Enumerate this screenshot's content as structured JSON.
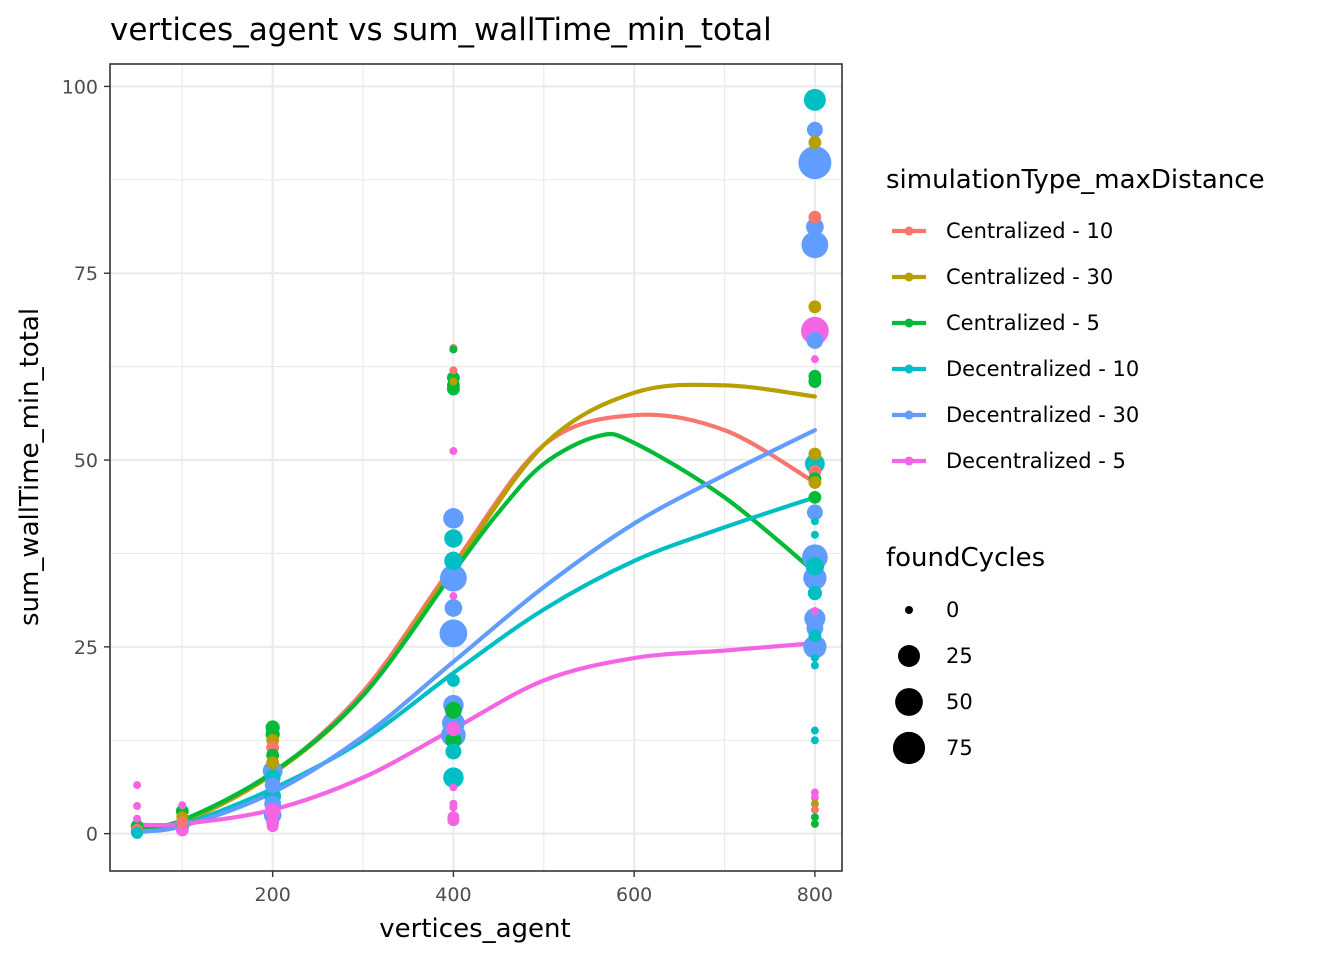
{
  "chart_data": {
    "type": "scatter",
    "title": "vertices_agent  vs  sum_wallTime_min_total",
    "xlabel": "vertices_agent",
    "ylabel": "sum_wallTime_min_total",
    "xlim": [
      20,
      830
    ],
    "ylim": [
      -5,
      103
    ],
    "x_ticks": [
      200,
      400,
      600,
      800
    ],
    "x_tick_labels": [
      "200",
      "400",
      "600",
      "800"
    ],
    "y_ticks": [
      0,
      25,
      50,
      75,
      100
    ],
    "y_tick_labels": [
      "0",
      "25",
      "50",
      "75",
      "100"
    ],
    "grid": true,
    "legend_placement": "right",
    "color_legend": {
      "title": "simulationType_maxDistance",
      "entries": [
        {
          "label": "Centralized - 10",
          "color": "#F8766D"
        },
        {
          "label": "Centralized - 30",
          "color": "#B79F00"
        },
        {
          "label": "Centralized - 5",
          "color": "#00BA38"
        },
        {
          "label": "Decentralized - 10",
          "color": "#00BFC4"
        },
        {
          "label": "Decentralized - 30",
          "color": "#619CFF"
        },
        {
          "label": "Decentralized - 5",
          "color": "#F564E3"
        }
      ]
    },
    "size_legend": {
      "title": "foundCycles",
      "entries": [
        {
          "label": "0",
          "value": 0
        },
        {
          "label": "25",
          "value": 25
        },
        {
          "label": "50",
          "value": 50
        },
        {
          "label": "75",
          "value": 75
        }
      ]
    },
    "smooth_lines": [
      {
        "series": "Centralized - 10",
        "color": "#F8766D",
        "x": [
          50,
          100,
          200,
          300,
          400,
          500,
          600,
          700,
          800
        ],
        "y": [
          0.5,
          1.5,
          8,
          19,
          36,
          52,
          56,
          54,
          47
        ]
      },
      {
        "series": "Centralized - 30",
        "color": "#B79F00",
        "x": [
          50,
          100,
          200,
          300,
          400,
          500,
          600,
          700,
          800
        ],
        "y": [
          0.5,
          1.5,
          8,
          18.5,
          35.5,
          52,
          59,
          60,
          58.5
        ]
      },
      {
        "series": "Centralized - 5",
        "color": "#00BA38",
        "x": [
          50,
          100,
          200,
          300,
          400,
          450,
          500,
          560,
          600,
          700,
          800
        ],
        "y": [
          0.8,
          1.8,
          8.2,
          18.5,
          35,
          43,
          49.5,
          53.2,
          52.3,
          45,
          35
        ]
      },
      {
        "series": "Decentralized - 10",
        "color": "#00BFC4",
        "x": [
          50,
          100,
          200,
          300,
          400,
          500,
          600,
          700,
          800
        ],
        "y": [
          0.2,
          1.2,
          6,
          12.5,
          21.5,
          30,
          36.5,
          41,
          45
        ]
      },
      {
        "series": "Decentralized - 30",
        "color": "#619CFF",
        "x": [
          50,
          100,
          200,
          300,
          400,
          500,
          600,
          700,
          800
        ],
        "y": [
          0.3,
          1.0,
          5.5,
          13,
          23,
          33,
          41.5,
          48,
          54
        ]
      },
      {
        "series": "Decentralized - 5",
        "color": "#F564E3",
        "x": [
          50,
          100,
          200,
          300,
          400,
          500,
          600,
          700,
          800
        ],
        "y": [
          1.2,
          1.3,
          3.2,
          7.5,
          14,
          20.5,
          23.5,
          24.5,
          25.5
        ]
      }
    ],
    "points": [
      {
        "x": 50,
        "y": 6.5,
        "series": "Decentralized - 5",
        "foundCycles": 0
      },
      {
        "x": 50,
        "y": 3.7,
        "series": "Decentralized - 5",
        "foundCycles": 0
      },
      {
        "x": 50,
        "y": 2.0,
        "series": "Decentralized - 5",
        "foundCycles": 0
      },
      {
        "x": 50,
        "y": 1.0,
        "series": "Centralized - 5",
        "foundCycles": 3
      },
      {
        "x": 50,
        "y": 0.5,
        "series": "Centralized - 10",
        "foundCycles": 2
      },
      {
        "x": 50,
        "y": 0.3,
        "series": "Decentralized - 30",
        "foundCycles": 3
      },
      {
        "x": 50,
        "y": 0.1,
        "series": "Decentralized - 10",
        "foundCycles": 2
      },
      {
        "x": 100,
        "y": 3.8,
        "series": "Decentralized - 5",
        "foundCycles": 0
      },
      {
        "x": 100,
        "y": 3.0,
        "series": "Centralized - 5",
        "foundCycles": 3
      },
      {
        "x": 100,
        "y": 2.2,
        "series": "Centralized - 30",
        "foundCycles": 2
      },
      {
        "x": 100,
        "y": 1.5,
        "series": "Centralized - 10",
        "foundCycles": 2
      },
      {
        "x": 100,
        "y": 1.2,
        "series": "Decentralized - 30",
        "foundCycles": 6
      },
      {
        "x": 100,
        "y": 0.8,
        "series": "Decentralized - 10",
        "foundCycles": 3
      },
      {
        "x": 100,
        "y": 0.5,
        "series": "Decentralized - 5",
        "foundCycles": 3
      },
      {
        "x": 200,
        "y": 14.2,
        "series": "Centralized - 5",
        "foundCycles": 5
      },
      {
        "x": 200,
        "y": 13.3,
        "series": "Centralized - 5",
        "foundCycles": 5
      },
      {
        "x": 200,
        "y": 12.5,
        "series": "Centralized - 30",
        "foundCycles": 3
      },
      {
        "x": 200,
        "y": 11.5,
        "series": "Centralized - 10",
        "foundCycles": 3
      },
      {
        "x": 200,
        "y": 10.5,
        "series": "Centralized - 5",
        "foundCycles": 3
      },
      {
        "x": 200,
        "y": 9.5,
        "series": "Centralized - 30",
        "foundCycles": 3
      },
      {
        "x": 200,
        "y": 8.4,
        "series": "Decentralized - 30",
        "foundCycles": 18
      },
      {
        "x": 200,
        "y": 7.5,
        "series": "Decentralized - 10",
        "foundCycles": 8
      },
      {
        "x": 200,
        "y": 6.5,
        "series": "Decentralized - 30",
        "foundCycles": 8
      },
      {
        "x": 200,
        "y": 5.0,
        "series": "Decentralized - 10",
        "foundCycles": 10
      },
      {
        "x": 200,
        "y": 4.0,
        "series": "Decentralized - 30",
        "foundCycles": 10
      },
      {
        "x": 200,
        "y": 3.0,
        "series": "Decentralized - 5",
        "foundCycles": 8
      },
      {
        "x": 200,
        "y": 2.5,
        "series": "Decentralized - 30",
        "foundCycles": 12
      },
      {
        "x": 200,
        "y": 1.5,
        "series": "Decentralized - 5",
        "foundCycles": 3
      },
      {
        "x": 200,
        "y": 1.0,
        "series": "Decentralized - 5",
        "foundCycles": 2
      },
      {
        "x": 400,
        "y": 65.0,
        "series": "Centralized - 10",
        "foundCycles": 0
      },
      {
        "x": 400,
        "y": 64.8,
        "series": "Centralized - 5",
        "foundCycles": 0
      },
      {
        "x": 400,
        "y": 62.0,
        "series": "Centralized - 10",
        "foundCycles": 0
      },
      {
        "x": 400,
        "y": 61.0,
        "series": "Centralized - 5",
        "foundCycles": 3
      },
      {
        "x": 400,
        "y": 60.5,
        "series": "Centralized - 30",
        "foundCycles": 0
      },
      {
        "x": 400,
        "y": 60.0,
        "series": "Centralized - 5",
        "foundCycles": 3
      },
      {
        "x": 400,
        "y": 59.5,
        "series": "Centralized - 5",
        "foundCycles": 3
      },
      {
        "x": 400,
        "y": 51.2,
        "series": "Decentralized - 5",
        "foundCycles": 0
      },
      {
        "x": 400,
        "y": 42.2,
        "series": "Decentralized - 30",
        "foundCycles": 20
      },
      {
        "x": 400,
        "y": 39.5,
        "series": "Decentralized - 10",
        "foundCycles": 14
      },
      {
        "x": 400,
        "y": 36.5,
        "series": "Decentralized - 10",
        "foundCycles": 14
      },
      {
        "x": 400,
        "y": 34.2,
        "series": "Decentralized - 30",
        "foundCycles": 45
      },
      {
        "x": 400,
        "y": 31.8,
        "series": "Decentralized - 5",
        "foundCycles": 0
      },
      {
        "x": 400,
        "y": 30.2,
        "series": "Decentralized - 30",
        "foundCycles": 12
      },
      {
        "x": 400,
        "y": 26.8,
        "series": "Decentralized - 30",
        "foundCycles": 50
      },
      {
        "x": 400,
        "y": 20.5,
        "series": "Decentralized - 10",
        "foundCycles": 3
      },
      {
        "x": 400,
        "y": 17.2,
        "series": "Decentralized - 30",
        "foundCycles": 20
      },
      {
        "x": 400,
        "y": 16.5,
        "series": "Centralized - 5",
        "foundCycles": 10
      },
      {
        "x": 400,
        "y": 14.8,
        "series": "Decentralized - 30",
        "foundCycles": 28
      },
      {
        "x": 400,
        "y": 14.0,
        "series": "Decentralized - 5",
        "foundCycles": 5
      },
      {
        "x": 400,
        "y": 13.2,
        "series": "Decentralized - 30",
        "foundCycles": 35
      },
      {
        "x": 400,
        "y": 12.5,
        "series": "Centralized - 5",
        "foundCycles": 8
      },
      {
        "x": 400,
        "y": 11.0,
        "series": "Decentralized - 10",
        "foundCycles": 8
      },
      {
        "x": 400,
        "y": 7.5,
        "series": "Decentralized - 10",
        "foundCycles": 20
      },
      {
        "x": 400,
        "y": 6.2,
        "series": "Decentralized - 5",
        "foundCycles": 0
      },
      {
        "x": 400,
        "y": 4.0,
        "series": "Decentralized - 5",
        "foundCycles": 0
      },
      {
        "x": 400,
        "y": 3.5,
        "series": "Decentralized - 5",
        "foundCycles": 0
      },
      {
        "x": 400,
        "y": 2.2,
        "series": "Decentralized - 5",
        "foundCycles": 2
      },
      {
        "x": 400,
        "y": 1.8,
        "series": "Decentralized - 5",
        "foundCycles": 2
      },
      {
        "x": 800,
        "y": 98.2,
        "series": "Decentralized - 10",
        "foundCycles": 25
      },
      {
        "x": 800,
        "y": 94.2,
        "series": "Decentralized - 30",
        "foundCycles": 8
      },
      {
        "x": 800,
        "y": 92.5,
        "series": "Centralized - 30",
        "foundCycles": 3
      },
      {
        "x": 800,
        "y": 89.8,
        "series": "Decentralized - 30",
        "foundCycles": 80
      },
      {
        "x": 800,
        "y": 82.5,
        "series": "Centralized - 10",
        "foundCycles": 3
      },
      {
        "x": 800,
        "y": 81.2,
        "series": "Decentralized - 30",
        "foundCycles": 12
      },
      {
        "x": 800,
        "y": 78.8,
        "series": "Decentralized - 30",
        "foundCycles": 45
      },
      {
        "x": 800,
        "y": 70.5,
        "series": "Centralized - 30",
        "foundCycles": 3
      },
      {
        "x": 800,
        "y": 67.3,
        "series": "Decentralized - 5",
        "foundCycles": 50
      },
      {
        "x": 800,
        "y": 66.0,
        "series": "Decentralized - 30",
        "foundCycles": 10
      },
      {
        "x": 800,
        "y": 63.5,
        "series": "Decentralized - 5",
        "foundCycles": 0
      },
      {
        "x": 800,
        "y": 61.2,
        "series": "Centralized - 5",
        "foundCycles": 3
      },
      {
        "x": 800,
        "y": 60.5,
        "series": "Centralized - 5",
        "foundCycles": 3
      },
      {
        "x": 800,
        "y": 50.8,
        "series": "Centralized - 30",
        "foundCycles": 3
      },
      {
        "x": 800,
        "y": 49.5,
        "series": "Decentralized - 10",
        "foundCycles": 18
      },
      {
        "x": 800,
        "y": 48.5,
        "series": "Centralized - 10",
        "foundCycles": 3
      },
      {
        "x": 800,
        "y": 47.5,
        "series": "Centralized - 5",
        "foundCycles": 3
      },
      {
        "x": 800,
        "y": 47.0,
        "series": "Centralized - 30",
        "foundCycles": 3
      },
      {
        "x": 800,
        "y": 45.0,
        "series": "Centralized - 5",
        "foundCycles": 3
      },
      {
        "x": 800,
        "y": 43.0,
        "series": "Decentralized - 30",
        "foundCycles": 8
      },
      {
        "x": 800,
        "y": 41.8,
        "series": "Decentralized - 10",
        "foundCycles": 0
      },
      {
        "x": 800,
        "y": 40.0,
        "series": "Decentralized - 10",
        "foundCycles": 0
      },
      {
        "x": 800,
        "y": 37.0,
        "series": "Decentralized - 30",
        "foundCycles": 40
      },
      {
        "x": 800,
        "y": 35.8,
        "series": "Decentralized - 10",
        "foundCycles": 14
      },
      {
        "x": 800,
        "y": 34.2,
        "series": "Decentralized - 30",
        "foundCycles": 30
      },
      {
        "x": 800,
        "y": 32.2,
        "series": "Decentralized - 10",
        "foundCycles": 5
      },
      {
        "x": 800,
        "y": 29.8,
        "series": "Decentralized - 5",
        "foundCycles": 0
      },
      {
        "x": 800,
        "y": 28.8,
        "series": "Decentralized - 30",
        "foundCycles": 22
      },
      {
        "x": 800,
        "y": 27.5,
        "series": "Decentralized - 30",
        "foundCycles": 10
      },
      {
        "x": 800,
        "y": 26.5,
        "series": "Decentralized - 10",
        "foundCycles": 3
      },
      {
        "x": 800,
        "y": 25.0,
        "series": "Decentralized - 30",
        "foundCycles": 30
      },
      {
        "x": 800,
        "y": 23.5,
        "series": "Decentralized - 10",
        "foundCycles": 0
      },
      {
        "x": 800,
        "y": 22.5,
        "series": "Decentralized - 10",
        "foundCycles": 0
      },
      {
        "x": 800,
        "y": 13.8,
        "series": "Decentralized - 10",
        "foundCycles": 0
      },
      {
        "x": 800,
        "y": 12.5,
        "series": "Decentralized - 10",
        "foundCycles": 0
      },
      {
        "x": 800,
        "y": 5.5,
        "series": "Decentralized - 5",
        "foundCycles": 0
      },
      {
        "x": 800,
        "y": 4.8,
        "series": "Decentralized - 5",
        "foundCycles": 0
      },
      {
        "x": 800,
        "y": 4.0,
        "series": "Centralized - 30",
        "foundCycles": 0
      },
      {
        "x": 800,
        "y": 3.2,
        "series": "Centralized - 10",
        "foundCycles": 0
      },
      {
        "x": 800,
        "y": 2.2,
        "series": "Centralized - 5",
        "foundCycles": 0
      },
      {
        "x": 800,
        "y": 1.3,
        "series": "Centralized - 5",
        "foundCycles": 0
      }
    ]
  }
}
